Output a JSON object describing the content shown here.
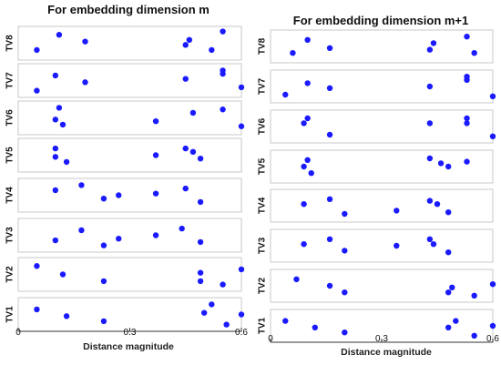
{
  "chart_data": [
    {
      "type": "scatter",
      "title": "For embedding dimension m",
      "xlabel": "Distance magnitude",
      "x_ticks": [
        "0",
        "0.3",
        "0.6"
      ],
      "xlim": [
        0,
        0.6
      ],
      "color": "#1a1aff",
      "rows": [
        {
          "name": "TV8",
          "points": [
            [
              0.05,
              0.3
            ],
            [
              0.11,
              0.75
            ],
            [
              0.18,
              0.55
            ],
            [
              0.45,
              0.45
            ],
            [
              0.46,
              0.6
            ],
            [
              0.52,
              0.3
            ],
            [
              0.55,
              0.85
            ]
          ]
        },
        {
          "name": "TV7",
          "points": [
            [
              0.05,
              0.2
            ],
            [
              0.1,
              0.65
            ],
            [
              0.18,
              0.45
            ],
            [
              0.45,
              0.55
            ],
            [
              0.55,
              0.8
            ],
            [
              0.55,
              0.7
            ],
            [
              0.6,
              0.3
            ]
          ]
        },
        {
          "name": "TV6",
          "points": [
            [
              0.11,
              0.8
            ],
            [
              0.1,
              0.45
            ],
            [
              0.12,
              0.3
            ],
            [
              0.37,
              0.4
            ],
            [
              0.47,
              0.65
            ],
            [
              0.55,
              0.75
            ],
            [
              0.6,
              0.25
            ]
          ]
        },
        {
          "name": "TV5",
          "points": [
            [
              0.1,
              0.7
            ],
            [
              0.1,
              0.45
            ],
            [
              0.13,
              0.3
            ],
            [
              0.37,
              0.5
            ],
            [
              0.45,
              0.7
            ],
            [
              0.47,
              0.6
            ],
            [
              0.49,
              0.4
            ]
          ]
        },
        {
          "name": "TV4",
          "points": [
            [
              0.1,
              0.65
            ],
            [
              0.17,
              0.8
            ],
            [
              0.23,
              0.4
            ],
            [
              0.27,
              0.5
            ],
            [
              0.37,
              0.55
            ],
            [
              0.45,
              0.7
            ],
            [
              0.49,
              0.3
            ]
          ]
        },
        {
          "name": "TV3",
          "points": [
            [
              0.1,
              0.35
            ],
            [
              0.17,
              0.65
            ],
            [
              0.23,
              0.2
            ],
            [
              0.27,
              0.4
            ],
            [
              0.37,
              0.5
            ],
            [
              0.44,
              0.7
            ],
            [
              0.49,
              0.3
            ]
          ]
        },
        {
          "name": "TV2",
          "points": [
            [
              0.05,
              0.75
            ],
            [
              0.12,
              0.5
            ],
            [
              0.23,
              0.3
            ],
            [
              0.49,
              0.55
            ],
            [
              0.49,
              0.3
            ],
            [
              0.55,
              0.2
            ],
            [
              0.6,
              0.65
            ]
          ]
        },
        {
          "name": "TV1",
          "points": [
            [
              0.05,
              0.65
            ],
            [
              0.13,
              0.45
            ],
            [
              0.23,
              0.3
            ],
            [
              0.5,
              0.55
            ],
            [
              0.52,
              0.8
            ],
            [
              0.56,
              0.2
            ],
            [
              0.6,
              0.5
            ]
          ]
        }
      ]
    },
    {
      "type": "scatter",
      "title": "For embedding dimension m+1",
      "xlabel": "Distance magnitude",
      "x_ticks": [
        "0",
        "0.3",
        "0.6"
      ],
      "xlim": [
        0,
        0.6
      ],
      "color": "#1a1aff",
      "rows": [
        {
          "name": "TV8",
          "points": [
            [
              0.06,
              0.3
            ],
            [
              0.1,
              0.7
            ],
            [
              0.16,
              0.45
            ],
            [
              0.43,
              0.4
            ],
            [
              0.44,
              0.6
            ],
            [
              0.53,
              0.8
            ],
            [
              0.55,
              0.3
            ]
          ]
        },
        {
          "name": "TV7",
          "points": [
            [
              0.04,
              0.25
            ],
            [
              0.1,
              0.6
            ],
            [
              0.16,
              0.45
            ],
            [
              0.43,
              0.5
            ],
            [
              0.53,
              0.8
            ],
            [
              0.53,
              0.7
            ],
            [
              0.6,
              0.2
            ]
          ]
        },
        {
          "name": "TV6",
          "points": [
            [
              0.1,
              0.75
            ],
            [
              0.09,
              0.6
            ],
            [
              0.16,
              0.25
            ],
            [
              0.43,
              0.6
            ],
            [
              0.53,
              0.75
            ],
            [
              0.53,
              0.6
            ],
            [
              0.6,
              0.2
            ]
          ]
        },
        {
          "name": "TV5",
          "points": [
            [
              0.1,
              0.7
            ],
            [
              0.09,
              0.5
            ],
            [
              0.11,
              0.3
            ],
            [
              0.43,
              0.75
            ],
            [
              0.46,
              0.6
            ],
            [
              0.48,
              0.5
            ],
            [
              0.53,
              0.65
            ]
          ]
        },
        {
          "name": "TV4",
          "points": [
            [
              0.09,
              0.55
            ],
            [
              0.16,
              0.7
            ],
            [
              0.2,
              0.25
            ],
            [
              0.34,
              0.35
            ],
            [
              0.43,
              0.65
            ],
            [
              0.45,
              0.55
            ],
            [
              0.48,
              0.3
            ]
          ]
        },
        {
          "name": "TV3",
          "points": [
            [
              0.09,
              0.55
            ],
            [
              0.16,
              0.7
            ],
            [
              0.2,
              0.35
            ],
            [
              0.34,
              0.5
            ],
            [
              0.43,
              0.7
            ],
            [
              0.44,
              0.55
            ],
            [
              0.48,
              0.3
            ]
          ]
        },
        {
          "name": "TV2",
          "points": [
            [
              0.07,
              0.7
            ],
            [
              0.16,
              0.5
            ],
            [
              0.2,
              0.3
            ],
            [
              0.48,
              0.3
            ],
            [
              0.49,
              0.45
            ],
            [
              0.55,
              0.2
            ],
            [
              0.6,
              0.55
            ]
          ]
        },
        {
          "name": "TV1",
          "points": [
            [
              0.04,
              0.65
            ],
            [
              0.12,
              0.45
            ],
            [
              0.2,
              0.3
            ],
            [
              0.48,
              0.45
            ],
            [
              0.5,
              0.65
            ],
            [
              0.55,
              0.2
            ],
            [
              0.6,
              0.5
            ]
          ]
        }
      ]
    }
  ]
}
